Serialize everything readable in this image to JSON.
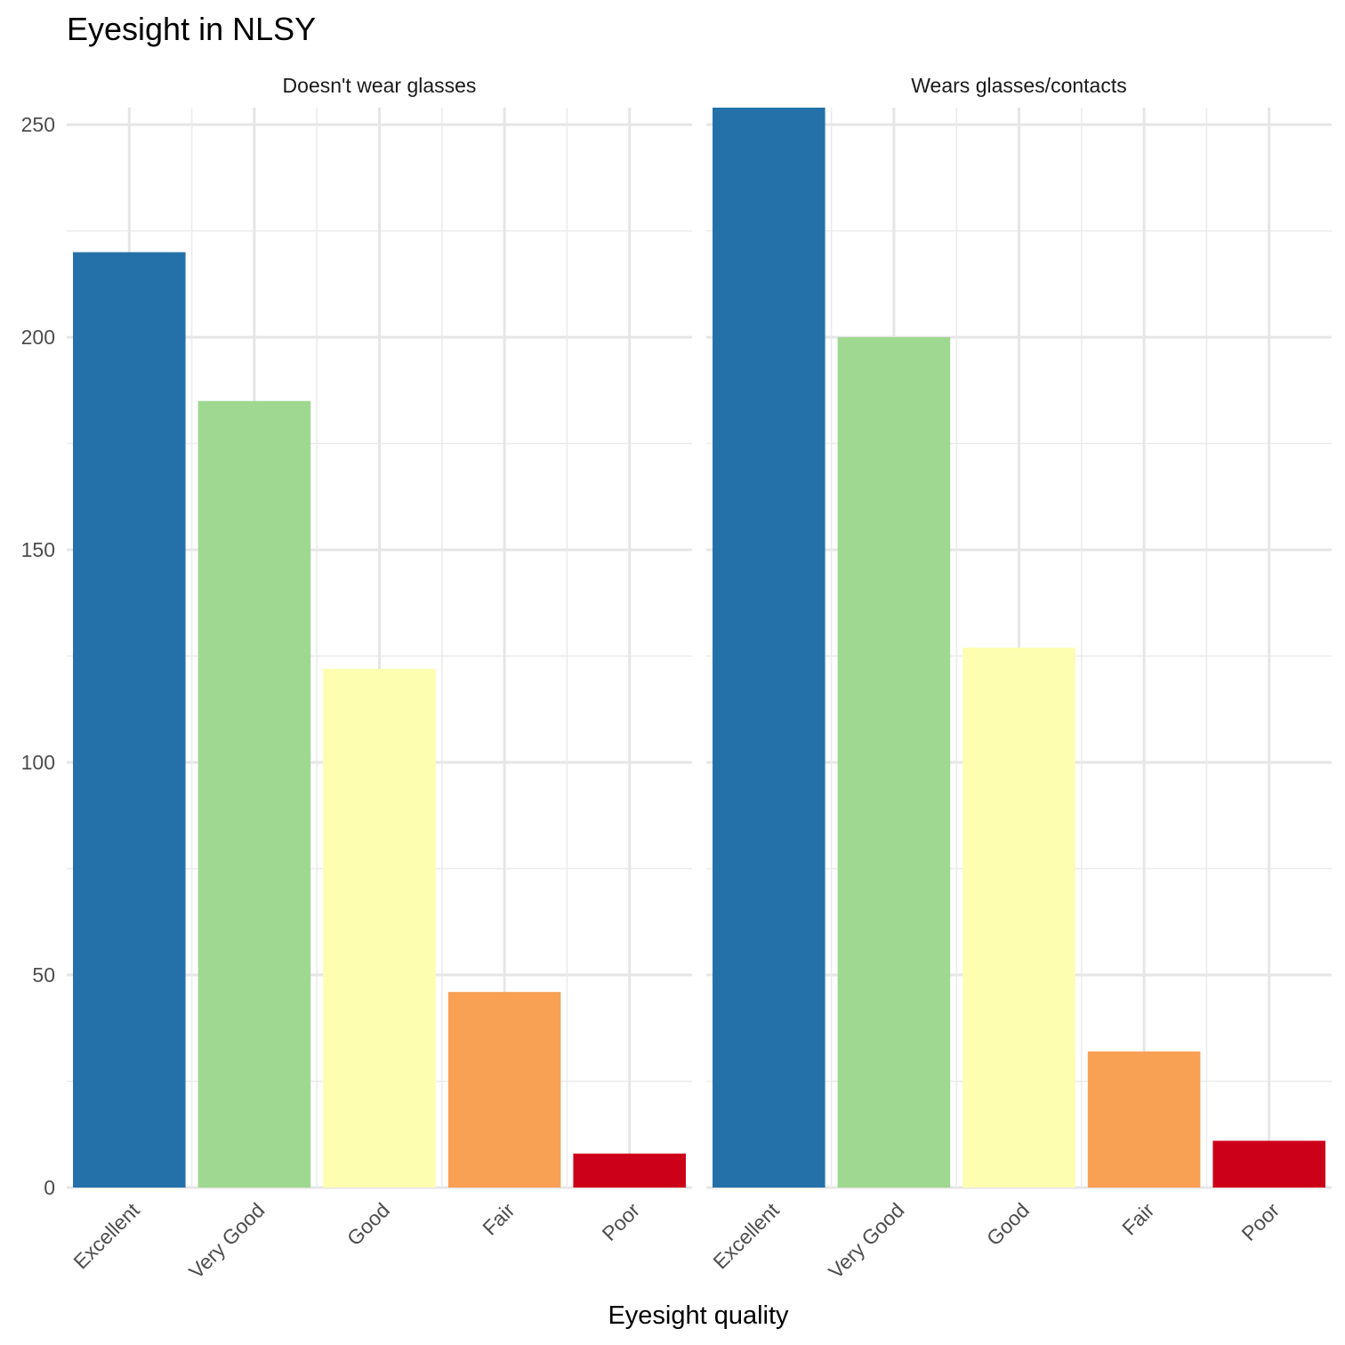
{
  "chart_data": {
    "type": "bar",
    "title": "Eyesight in NLSY",
    "xlabel": "Eyesight quality",
    "ylabel": "",
    "ylim": [
      0,
      254
    ],
    "yticks": [
      0,
      50,
      100,
      150,
      200,
      250
    ],
    "grid": true,
    "legend": "none",
    "categories": [
      "Excellent",
      "Very Good",
      "Good",
      "Fair",
      "Poor"
    ],
    "colors": [
      "#2471a9",
      "#9fd890",
      "#fdfeb0",
      "#f8a054",
      "#cd0019"
    ],
    "panels": [
      {
        "name": "Doesn't wear glasses",
        "values": [
          220,
          185,
          122,
          46,
          8
        ]
      },
      {
        "name": "Wears glasses/contacts",
        "values": [
          254,
          200,
          127,
          32,
          11
        ]
      }
    ]
  }
}
